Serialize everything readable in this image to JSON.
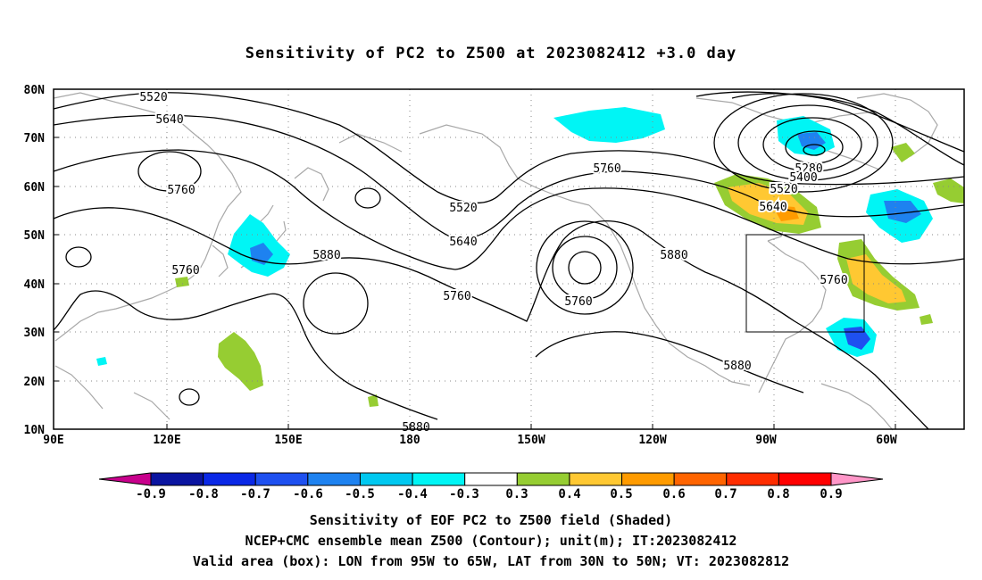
{
  "title": "Sensitivity of PC2 to Z500 at 2023082412 +3.0 day",
  "lat_labels": [
    "80N",
    "70N",
    "60N",
    "50N",
    "40N",
    "30N",
    "20N",
    "10N"
  ],
  "lon_labels": [
    "90E",
    "120E",
    "150E",
    "180",
    "150W",
    "120W",
    "90W",
    "60W"
  ],
  "contour_labels": [
    {
      "text": "5520",
      "key": "c1"
    },
    {
      "text": "5640",
      "key": "c2"
    },
    {
      "text": "5760",
      "key": "c3"
    },
    {
      "text": "5760",
      "key": "c4"
    },
    {
      "text": "5880",
      "key": "c5"
    },
    {
      "text": "5520",
      "key": "c6"
    },
    {
      "text": "5640",
      "key": "c7"
    },
    {
      "text": "5760",
      "key": "c8"
    },
    {
      "text": "5760",
      "key": "c9"
    },
    {
      "text": "5760",
      "key": "c10"
    },
    {
      "text": "5880",
      "key": "c11"
    },
    {
      "text": "5880",
      "key": "c12"
    },
    {
      "text": "5280",
      "key": "c13"
    },
    {
      "text": "5400",
      "key": "c14"
    },
    {
      "text": "5520",
      "key": "c15"
    },
    {
      "text": "5640",
      "key": "c16"
    },
    {
      "text": "5760",
      "key": "c17"
    },
    {
      "text": "5880",
      "key": "c18"
    }
  ],
  "colorbar": {
    "labels": [
      "-0.9",
      "-0.8",
      "-0.7",
      "-0.6",
      "-0.5",
      "-0.4",
      "-0.3",
      "0.3",
      "0.4",
      "0.5",
      "0.6",
      "0.7",
      "0.8",
      "0.9"
    ],
    "colors": [
      "#c8008c",
      "#0a14a0",
      "#0a28e6",
      "#1e50f0",
      "#1e82f0",
      "#00c8f0",
      "#00f5f5",
      "#ffffff",
      "#96cd32",
      "#ffc832",
      "#ff9b00",
      "#ff6400",
      "#ff2d00",
      "#ff0000",
      "#ff96c8"
    ]
  },
  "caption": [
    "Sensitivity of EOF PC2 to Z500 field (Shaded)",
    "NCEP+CMC ensemble mean Z500 (Contour); unit(m); IT:2023082412",
    "Valid area (box): LON from 95W to 65W, LAT from 30N to 50N; VT: 2023082812"
  ]
}
